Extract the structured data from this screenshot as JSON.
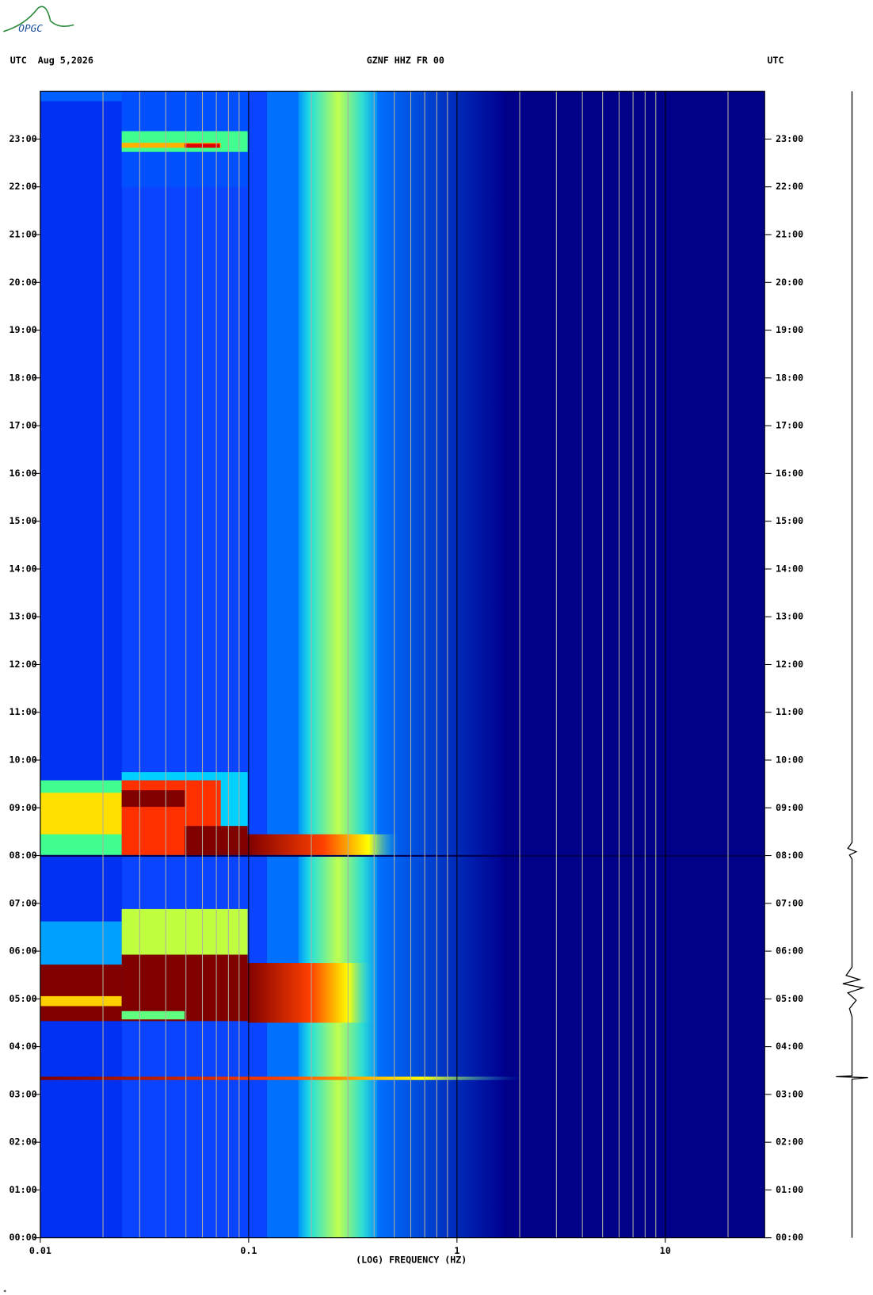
{
  "header": {
    "logo": "OPGC",
    "left": "UTC  Aug 5,2026",
    "center": "GZNF HHZ FR 00",
    "right": "UTC"
  },
  "chart_data": {
    "type": "spectrogram",
    "x_label": "(LOG) FREQUENCY (HZ)",
    "xscale": "log",
    "xlim": [
      0.01,
      30
    ],
    "xticks": [
      0.01,
      0.1,
      1,
      10
    ],
    "xminor_ticks": [
      0.02,
      0.03,
      0.04,
      0.05,
      0.06,
      0.07,
      0.08,
      0.09,
      0.2,
      0.3,
      0.4,
      0.5,
      0.6,
      0.7,
      0.8,
      0.9,
      2,
      3,
      4,
      5,
      6,
      7,
      8,
      9,
      20
    ],
    "ylim": [
      0,
      24
    ],
    "yticks": [
      {
        "value": 0,
        "label": "00:00"
      },
      {
        "value": 1,
        "label": "01:00"
      },
      {
        "value": 2,
        "label": "02:00"
      },
      {
        "value": 3,
        "label": "03:00"
      },
      {
        "value": 4,
        "label": "04:00"
      },
      {
        "value": 5,
        "label": "05:00"
      },
      {
        "value": 6,
        "label": "06:00"
      },
      {
        "value": 7,
        "label": "07:00"
      },
      {
        "value": 8,
        "label": "08:00"
      },
      {
        "value": 9,
        "label": "09:00"
      },
      {
        "value": 10,
        "label": "10:00"
      },
      {
        "value": 11,
        "label": "11:00"
      },
      {
        "value": 12,
        "label": "12:00"
      },
      {
        "value": 13,
        "label": "13:00"
      },
      {
        "value": 14,
        "label": "14:00"
      },
      {
        "value": 15,
        "label": "15:00"
      },
      {
        "value": 16,
        "label": "16:00"
      },
      {
        "value": 17,
        "label": "17:00"
      },
      {
        "value": 18,
        "label": "18:00"
      },
      {
        "value": 19,
        "label": "19:00"
      },
      {
        "value": 20,
        "label": "20:00"
      },
      {
        "value": 21,
        "label": "21:00"
      },
      {
        "value": 22,
        "label": "22:00"
      },
      {
        "value": 23,
        "label": "23:00"
      }
    ]
  }
}
